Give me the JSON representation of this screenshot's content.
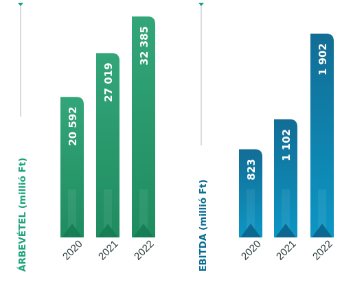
{
  "colors": {
    "green_top": "#33a679",
    "green_bottom": "#1f8c60",
    "green_dark": "#147a52",
    "blue_top": "#126d95",
    "blue_bottom": "#0c96c4",
    "blue_dark": "#0b5f87",
    "green_axis": "#1ba37a",
    "blue_axis": "#0a6c92",
    "marker": "#1a9e87"
  },
  "chart_data": [
    {
      "type": "bar",
      "ylabel": "ÁRBEVÉTEL (millió Ft)",
      "categories": [
        "2020",
        "2021",
        "2022"
      ],
      "values": [
        20592,
        27019,
        32385
      ],
      "value_labels": [
        "20 592",
        "27 019",
        "32 385"
      ],
      "color": "green"
    },
    {
      "type": "bar",
      "ylabel": "EBITDA (millió Ft)",
      "categories": [
        "2020",
        "2021",
        "2022"
      ],
      "values": [
        823,
        1102,
        1902
      ],
      "value_labels": [
        "823",
        "1 102",
        "1 902"
      ],
      "color": "blue"
    }
  ]
}
